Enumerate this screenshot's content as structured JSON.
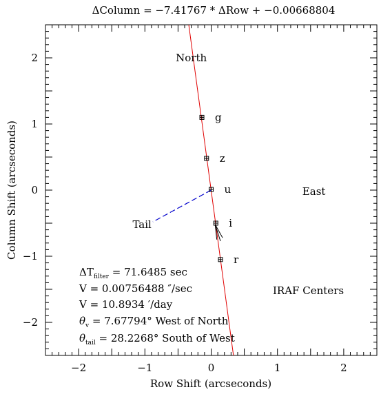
{
  "chart_data": {
    "type": "scatter",
    "title": "ΔColumn = −7.41767 * ΔRow + −0.00668804",
    "xlabel": "Row Shift (arcseconds)",
    "ylabel": "Column Shift (arcseconds)",
    "xlim": [
      -2.5,
      2.5
    ],
    "ylim": [
      -2.5,
      2.5
    ],
    "xticks": [
      -2,
      -1,
      0,
      1,
      2
    ],
    "yticks": [
      -2,
      -1,
      0,
      1,
      2
    ],
    "xtick_labels": [
      "−2",
      "−1",
      "0",
      "1",
      "2"
    ],
    "ytick_labels": [
      "−2",
      "−1",
      "0",
      "1",
      "2"
    ],
    "fit_line": {
      "slope": -7.41767,
      "intercept": -0.00668804,
      "color": "#e00000"
    },
    "points": [
      {
        "label": "g",
        "x": -0.14,
        "y": 1.1
      },
      {
        "label": "z",
        "x": -0.07,
        "y": 0.48
      },
      {
        "label": "u",
        "x": 0.0,
        "y": 0.01
      },
      {
        "label": "i",
        "x": 0.07,
        "y": -0.5
      },
      {
        "label": "r",
        "x": 0.14,
        "y": -1.05
      }
    ],
    "tail": {
      "x1": 0.0,
      "y1": 0.0,
      "x2": -0.88,
      "y2": -0.48,
      "color": "#0000cc",
      "label": "Tail"
    },
    "velocity_arrow": {
      "x1": 0.14,
      "y1": -0.77,
      "x2": 0.06,
      "y2": -0.52
    },
    "directions": [
      {
        "text": "North",
        "x": -0.3,
        "y": 2.0
      },
      {
        "text": "East",
        "x": 1.55,
        "y": -0.02
      }
    ],
    "annotations": {
      "dt_prefix": "ΔT",
      "dt_sub": "filter",
      "dt_value": " = 71.6485 sec",
      "v_arcsec": "V = 0.00756488 ″/sec",
      "v_arcmin": "V = 10.8934 ′/day",
      "theta_v_sym": "θ",
      "theta_v_sub": "v",
      "theta_v_value": " = 7.67794° West of North",
      "theta_tail_sym": "θ",
      "theta_tail_sub": "tail",
      "theta_tail_value": " = 28.2268° South of West",
      "method": "IRAF Centers"
    }
  }
}
